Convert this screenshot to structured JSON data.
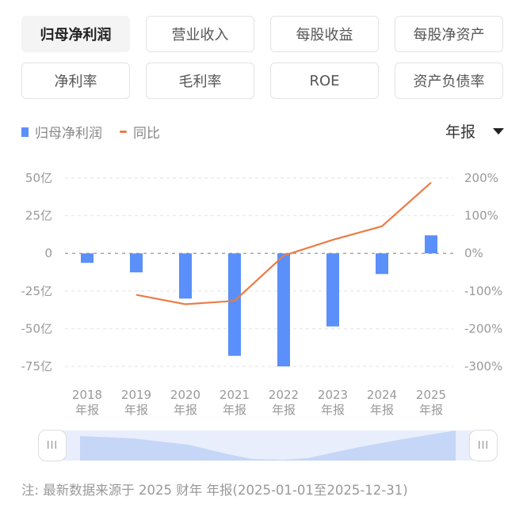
{
  "tabs": [
    {
      "label": "归母净利润",
      "active": true
    },
    {
      "label": "营业收入",
      "active": false
    },
    {
      "label": "每股收益",
      "active": false
    },
    {
      "label": "每股净资产",
      "active": false
    },
    {
      "label": "净利率",
      "active": false
    },
    {
      "label": "毛利率",
      "active": false
    },
    {
      "label": "ROE",
      "active": false
    },
    {
      "label": "资产负债率",
      "active": false
    }
  ],
  "legend": {
    "bar_label": "归母净利润",
    "line_label": "同比"
  },
  "period_selector": {
    "value": "年报",
    "icon": "caret-down-icon"
  },
  "slider": {
    "left_handle": "III",
    "right_handle": "III"
  },
  "note": "注: 最新数据来源于 2025 财年 年报(2025-01-01至2025-12-31)",
  "colors": {
    "bar": "#5b8ff9",
    "line": "#e97c46",
    "active_tab_bg": "#f4f4f4"
  },
  "chart_data": {
    "type": "bar+line",
    "categories": [
      "2018\n年报",
      "2019\n年报",
      "2020\n年报",
      "2021\n年报",
      "2022\n年报",
      "2023\n年报",
      "2024\n年报",
      "2025\n年报"
    ],
    "category_years": [
      "2018",
      "2019",
      "2020",
      "2021",
      "2022",
      "2023",
      "2024",
      "2025"
    ],
    "category_suffix": "年报",
    "series": [
      {
        "name": "归母净利润",
        "type": "bar",
        "axis": "left",
        "unit": "亿",
        "values": [
          -6.3,
          -12.6,
          -30.0,
          -68.0,
          -75.0,
          -48.5,
          -13.7,
          12.0
        ]
      },
      {
        "name": "同比",
        "type": "line",
        "axis": "right",
        "unit": "%",
        "values": [
          null,
          -110,
          -135,
          -126,
          -6,
          36,
          72,
          188
        ]
      }
    ],
    "left_axis": {
      "ticks": [
        "50亿",
        "25亿",
        "0",
        "-25亿",
        "-50亿",
        "-75亿"
      ],
      "range": [
        -75,
        50
      ]
    },
    "right_axis": {
      "ticks": [
        "200%",
        "100%",
        "0%",
        "-100%",
        "-200%",
        "-300%"
      ],
      "range": [
        -300,
        200
      ]
    },
    "grid": true,
    "legend_position": "top-left"
  }
}
